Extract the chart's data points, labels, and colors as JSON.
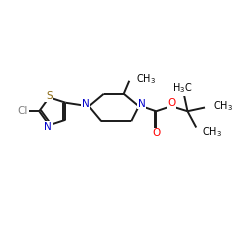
{
  "background_color": "#ffffff",
  "bond_color": "#1a1a1a",
  "atom_colors": {
    "N": "#0000cc",
    "O": "#ff0000",
    "S": "#8b6914",
    "Cl": "#7f7f7f"
  },
  "figsize": [
    2.5,
    2.5
  ],
  "dpi": 100,
  "xlim": [
    0,
    10
  ],
  "ylim": [
    0,
    10
  ]
}
